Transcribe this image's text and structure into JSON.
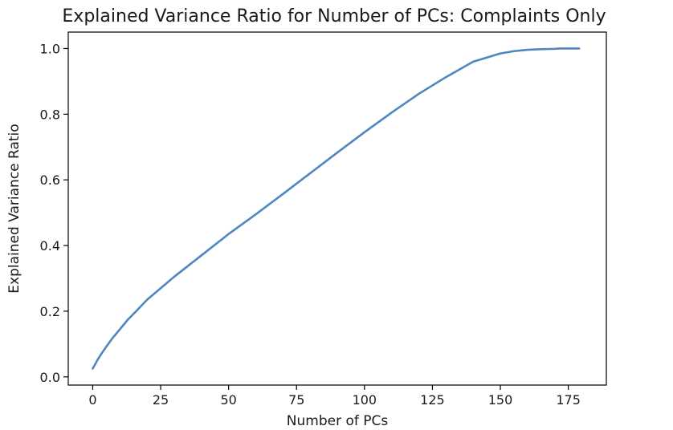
{
  "chart_data": {
    "type": "line",
    "title": "Explained Variance Ratio for Number of PCs: Complaints Only",
    "xlabel": "Number of PCs",
    "ylabel": "Explained Variance Ratio",
    "xlim": [
      -9,
      189
    ],
    "ylim": [
      -0.025,
      1.05
    ],
    "xticks": [
      0,
      25,
      50,
      75,
      100,
      125,
      150,
      175
    ],
    "xtick_labels": [
      "0",
      "25",
      "50",
      "75",
      "100",
      "125",
      "150",
      "175"
    ],
    "yticks": [
      0.0,
      0.2,
      0.4,
      0.6,
      0.8,
      1.0
    ],
    "ytick_labels": [
      "0.0",
      "0.2",
      "0.4",
      "0.6",
      "0.8",
      "1.0"
    ],
    "grid": false,
    "color": "#4f86c0",
    "series": [
      {
        "x": [
          0,
          1,
          2,
          3,
          5,
          7,
          10,
          13,
          16,
          20,
          25,
          30,
          40,
          50,
          60,
          70,
          80,
          90,
          100,
          110,
          120,
          130,
          140,
          150,
          155,
          160,
          165,
          170,
          172,
          175,
          179
        ],
        "y": [
          0.025,
          0.04,
          0.055,
          0.068,
          0.092,
          0.115,
          0.145,
          0.175,
          0.2,
          0.235,
          0.27,
          0.305,
          0.37,
          0.435,
          0.495,
          0.557,
          0.62,
          0.683,
          0.745,
          0.805,
          0.862,
          0.913,
          0.96,
          0.985,
          0.992,
          0.996,
          0.998,
          0.999,
          1.0,
          1.0,
          1.0
        ]
      }
    ]
  }
}
